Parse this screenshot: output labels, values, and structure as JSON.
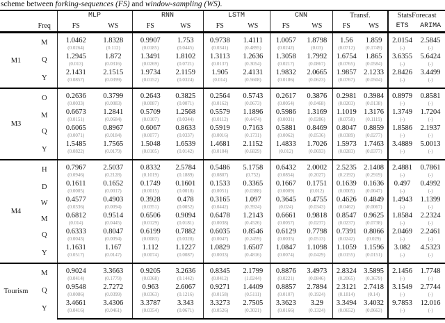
{
  "caption": {
    "prefix": "scheme between ",
    "fs_term": "forking-sequences (FS)",
    "mid": " and ",
    "ws_term": "window-sampling (WS)",
    "suffix": "."
  },
  "table": {
    "freq_header": "Freq",
    "groups_header": [
      {
        "name": "MLP",
        "name_font": "mono",
        "sub": [
          "FS",
          "WS"
        ],
        "sub_font": "serifh"
      },
      {
        "name": "RNN",
        "name_font": "mono",
        "sub": [
          "FS",
          "WS"
        ],
        "sub_font": "serifh"
      },
      {
        "name": "LSTM",
        "name_font": "mono",
        "sub": [
          "FS",
          "WS"
        ],
        "sub_font": "serifh"
      },
      {
        "name": "CNN",
        "name_font": "mono",
        "sub": [
          "FS",
          "WS"
        ],
        "sub_font": "serifh"
      },
      {
        "name": "Transf.",
        "name_font": "serifh",
        "sub": [
          "FS",
          "WS"
        ],
        "sub_font": "serifh"
      },
      {
        "name": "StatsForecast",
        "name_font": "serifh",
        "sub": [
          "ETS",
          "ARIMA"
        ],
        "sub_font": "mono"
      }
    ],
    "row_groups": [
      {
        "label": "M1",
        "rows": [
          {
            "freq": "M",
            "values": [
              "1.0462",
              "1.8328",
              "0.9907",
              "1.753",
              "0.9738",
              "1.4111",
              "1.0057",
              "1.8798",
              "1.56",
              "1.859",
              "2.0154",
              "2.5845"
            ],
            "stds": [
              "(0.0264)",
              "(0.112)",
              "(0.0185)",
              "(0.0445)",
              "(0.0341)",
              "(0.4895)",
              "(0.0242)",
              "(0.03)",
              "(0.0712)",
              "(0.1749)",
              "(-)",
              "(-)"
            ]
          },
          {
            "freq": "Q",
            "values": [
              "1.2945",
              "1.872",
              "1.3491",
              "1.8102",
              "1.3113",
              "1.2636",
              "1.3058",
              "1.7992",
              "1.6754",
              "1.865",
              "3.6355",
              "5.6424"
            ],
            "stds": [
              "(0.013)",
              "(0.0316)",
              "(0.0269)",
              "(0.0721)",
              "(0.0137)",
              "(0.3054)",
              "(0.0217)",
              "(0.0867)",
              "(0.0765)",
              "(0.0584)",
              "(-)",
              "(-)"
            ]
          },
          {
            "freq": "Y",
            "values": [
              "2.1431",
              "2.1515",
              "1.9734",
              "2.1159",
              "1.905",
              "2.4131",
              "1.9832",
              "2.0665",
              "1.9857",
              "2.1233",
              "2.8426",
              "3.4499"
            ],
            "stds": [
              "(0.0857)",
              "(0.0399)",
              "(0.0152)",
              "(0.0324)",
              "(0.014)",
              "(0.5608)",
              "(0.0186)",
              "(0.0623)",
              "(0.0767)",
              "(0.0504)",
              "(-)",
              "(-)"
            ]
          }
        ]
      },
      {
        "label": "M3",
        "rows": [
          {
            "freq": "O",
            "values": [
              "0.2636",
              "0.3799",
              "0.2643",
              "0.3825",
              "0.2564",
              "0.5743",
              "0.2617",
              "0.3876",
              "0.2981",
              "0.3984",
              "0.8979",
              "0.8581"
            ],
            "stds": [
              "(0.0033)",
              "(0.0083)",
              "(0.0087)",
              "(0.0071)",
              "(0.0162)",
              "(0.0673)",
              "(0.0054)",
              "(0.0468)",
              "(0.0203)",
              "(0.0138)",
              "(-)",
              "(-)"
            ]
          },
          {
            "freq": "M",
            "values": [
              "0.6673",
              "1.2841",
              "0.5709",
              "1.2568",
              "0.5579",
              "1.1896",
              "0.5986",
              "1.3169",
              "1.1019",
              "1.3176",
              "1.3749",
              "1.7204"
            ],
            "stds": [
              "(0.0151)",
              "(0.0684)",
              "(0.0107)",
              "(0.0344)",
              "(0.0112)",
              "(0.4474)",
              "(0.0031)",
              "(0.0286)",
              "(0.0758)",
              "(0.1119)",
              "(-)",
              "(-)"
            ]
          },
          {
            "freq": "Q",
            "values": [
              "0.6065",
              "0.8967",
              "0.6067",
              "0.8633",
              "0.5919",
              "0.7163",
              "0.5881",
              "0.8469",
              "0.8047",
              "0.8859",
              "1.8586",
              "2.1937"
            ],
            "stds": [
              "(0.0071)",
              "(0.0184)",
              "(0.0077)",
              "(0.0337)",
              "(0.0016)",
              "(0.1731)",
              "(0.0062)",
              "(0.0536)",
              "(0.0389)",
              "(0.0277)",
              "(-)",
              "(-)"
            ]
          },
          {
            "freq": "Y",
            "values": [
              "1.5485",
              "1.7565",
              "1.5048",
              "1.6539",
              "1.4681",
              "2.1152",
              "1.4833",
              "1.7026",
              "1.5973",
              "1.7463",
              "3.4889",
              "5.0013"
            ],
            "stds": [
              "(0.0822)",
              "(0.0179)",
              "(0.0105)",
              "(0.0142)",
              "(0.0104)",
              "(0.6829)",
              "(0.012)",
              "(0.0693)",
              "(0.0283)",
              "(0.0377)",
              "(-)",
              "(-)"
            ]
          }
        ]
      },
      {
        "label": "M4",
        "rows": [
          {
            "freq": "H",
            "values": [
              "0.7967",
              "2.5037",
              "0.8332",
              "2.5784",
              "0.5486",
              "5.1758",
              "0.6432",
              "2.0002",
              "2.5235",
              "2.1408",
              "2.4881",
              "0.7861"
            ],
            "stds": [
              "(0.0946)",
              "(0.2128)",
              "(0.1019)",
              "(0.1889)",
              "(0.0807)",
              "(0.752)",
              "(0.0854)",
              "(0.2027)",
              "(0.2192)",
              "(0.2919)",
              "(-)",
              "(-)"
            ]
          },
          {
            "freq": "D",
            "values": [
              "0.1611",
              "0.1652",
              "0.1749",
              "0.1601",
              "0.1533",
              "0.3365",
              "0.1667",
              "0.1751",
              "0.1639",
              "0.1636",
              "0.497",
              "0.4992"
            ],
            "stds": [
              "(0.0005)",
              "(0.0017)",
              "(0.0015)",
              "(0.0018)",
              "(0.0051)",
              "(0.0388)",
              "(0.0009)",
              "(0.012)",
              "(0.0005)",
              "(0.0047)",
              "(-)",
              "(-)"
            ]
          },
          {
            "freq": "W",
            "values": [
              "0.4577",
              "0.4903",
              "0.3928",
              "0.478",
              "0.3165",
              "1.097",
              "0.3645",
              "0.4755",
              "0.4626",
              "0.4849",
              "1.4943",
              "1.1399"
            ],
            "stds": [
              "(0.0336)",
              "(0.0094)",
              "(0.0351)",
              "(0.0052)",
              "(0.0442)",
              "(0.3924)",
              "(0.024)",
              "(0.0343)",
              "(0.0462)",
              "(0.0067)",
              "(-)",
              "(-)"
            ]
          },
          {
            "freq": "M",
            "values": [
              "0.6812",
              "0.9514",
              "0.6506",
              "0.9094",
              "0.6478",
              "1.2143",
              "0.6661",
              "0.9818",
              "0.8547",
              "0.9625",
              "1.8584",
              "2.2324"
            ],
            "stds": [
              "(0.014)",
              "(0.0445)",
              "(0.0129)",
              "(0.0181)",
              "(0.0038)",
              "(0.4526)",
              "(0.0057)",
              "(0.0237)",
              "(0.0237)",
              "(0.0738)",
              "(-)",
              "(-)"
            ]
          },
          {
            "freq": "Q",
            "values": [
              "0.6333",
              "0.8047",
              "0.6199",
              "0.7882",
              "0.6035",
              "0.8546",
              "0.6129",
              "0.7798",
              "0.7391",
              "0.8066",
              "2.0469",
              "2.2461"
            ],
            "stds": [
              "(0.0043)",
              "(0.0094)",
              "(0.0083)",
              "(0.0328)",
              "(0.0047)",
              "(0.2459)",
              "(0.0035)",
              "(0.0513)",
              "(0.0242)",
              "(0.029)",
              "(-)",
              "(-)"
            ]
          },
          {
            "freq": "Y",
            "values": [
              "1.1631",
              "1.167",
              "1.112",
              "1.1227",
              "1.0829",
              "1.6507",
              "1.0847",
              "1.1098",
              "1.1059",
              "1.1596",
              "3.082",
              "4.5323"
            ],
            "stds": [
              "(0.0517)",
              "(0.0147)",
              "(0.0074)",
              "(0.0087)",
              "(0.0033)",
              "(0.4816)",
              "(0.0074)",
              "(0.0429)",
              "(0.0155)",
              "(0.0151)",
              "(-)",
              "(-)"
            ]
          }
        ]
      },
      {
        "label": "Tourism",
        "rows": [
          {
            "freq": "M",
            "values": [
              "0.9024",
              "3.3663",
              "0.9205",
              "3.2636",
              "0.8345",
              "2.1799",
              "0.8876",
              "3.4973",
              "2.8324",
              "3.5895",
              "2.1456",
              "1.7748"
            ],
            "stds": [
              "(0.0414)",
              "(0.1779)",
              "(0.0368)",
              "(0.1442)",
              "(0.0412)",
              "(1.0244)",
              "(0.0221)",
              "(0.0846)",
              "(0.2065)",
              "(0.3679)",
              "(-)",
              "(-)"
            ]
          },
          {
            "freq": "Q",
            "values": [
              "0.9548",
              "2.7272",
              "0.963",
              "2.6067",
              "0.9271",
              "1.4409",
              "0.8857",
              "2.7894",
              "2.3121",
              "2.7418",
              "3.1549",
              "2.7744"
            ],
            "stds": [
              "(0.0086)",
              "(0.0399)",
              "(0.0363)",
              "(0.1216)",
              "(0.0158)",
              "(0.5111)",
              "(0.0107)",
              "(0.1924)",
              "(0.1814)",
              "(0.14)",
              "(-)",
              "(-)"
            ]
          },
          {
            "freq": "Y",
            "values": [
              "3.4661",
              "3.4306",
              "3.3787",
              "3.343",
              "3.3273",
              "2.7505",
              "3.3623",
              "3.29",
              "3.3494",
              "3.4032",
              "9.7853",
              "12.016"
            ],
            "stds": [
              "(0.0416)",
              "(0.0461)",
              "(0.0354)",
              "(0.0671)",
              "(0.0526)",
              "(0.3021)",
              "(0.0166)",
              "(0.1324)",
              "(0.0652)",
              "(0.0663)",
              "(-)",
              "(-)"
            ]
          }
        ]
      }
    ]
  }
}
